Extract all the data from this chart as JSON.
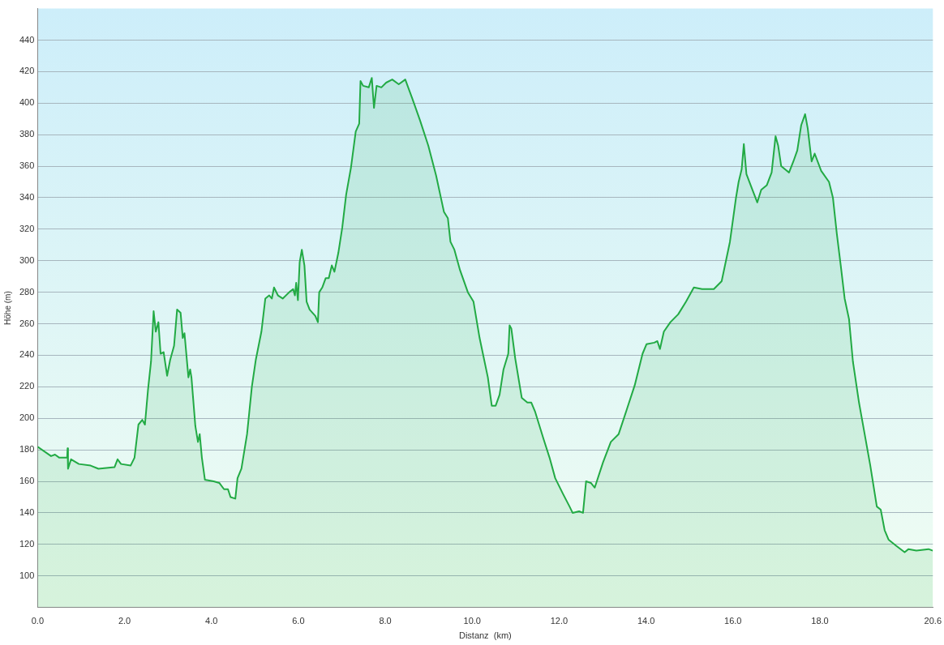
{
  "chart_data": {
    "type": "area",
    "xlabel": "Distanz  (km)",
    "ylabel": "Höhe (m)",
    "xlim": [
      0,
      20.6
    ],
    "ylim": [
      80,
      460
    ],
    "xticks": [
      {
        "value": 0,
        "label": "0.0"
      },
      {
        "value": 2,
        "label": "2.0"
      },
      {
        "value": 4,
        "label": "4.0"
      },
      {
        "value": 6,
        "label": "6.0"
      },
      {
        "value": 8,
        "label": "8.0"
      },
      {
        "value": 10,
        "label": "10.0"
      },
      {
        "value": 12,
        "label": "12.0"
      },
      {
        "value": 14,
        "label": "14.0"
      },
      {
        "value": 16,
        "label": "16.0"
      },
      {
        "value": 18,
        "label": "18.0"
      },
      {
        "value": 20.6,
        "label": "20.6"
      }
    ],
    "yticks": [
      100,
      120,
      140,
      160,
      180,
      200,
      220,
      240,
      260,
      280,
      300,
      320,
      340,
      360,
      380,
      400,
      420,
      440
    ],
    "grid": "y",
    "legend": false,
    "marker": "none",
    "line_style": "solid",
    "series": [
      {
        "color": "#22aa44",
        "x": [
          0,
          0.31,
          0.4,
          0.5,
          0.68,
          0.69,
          0.7,
          0.77,
          0.95,
          1.22,
          1.4,
          1.77,
          1.84,
          1.92,
          2.14,
          2.23,
          2.32,
          2.41,
          2.47,
          2.54,
          2.61,
          2.67,
          2.72,
          2.78,
          2.83,
          2.9,
          2.98,
          3.05,
          3.14,
          3.21,
          3.29,
          3.34,
          3.38,
          3.47,
          3.51,
          3.54,
          3.63,
          3.69,
          3.73,
          3.78,
          3.85,
          4.05,
          4.18,
          4.29,
          4.38,
          4.44,
          4.55,
          4.6,
          4.69,
          4.82,
          4.93,
          5.02,
          5.15,
          5.24,
          5.33,
          5.39,
          5.44,
          5.53,
          5.64,
          5.79,
          5.88,
          5.92,
          5.95,
          5.99,
          6.03,
          6.08,
          6.14,
          6.19,
          6.26,
          6.39,
          6.45,
          6.48,
          6.55,
          6.63,
          6.7,
          6.77,
          6.83,
          6.92,
          7.01,
          7.1,
          7.21,
          7.32,
          7.4,
          7.43,
          7.49,
          7.62,
          7.69,
          7.74,
          7.8,
          7.91,
          8.02,
          8.16,
          8.31,
          8.46,
          8.62,
          8.8,
          8.99,
          9.17,
          9.35,
          9.44,
          9.5,
          9.59,
          9.72,
          9.9,
          10.03,
          10.17,
          10.36,
          10.45,
          10.54,
          10.63,
          10.72,
          10.83,
          10.86,
          10.9,
          10.99,
          11.14,
          11.27,
          11.36,
          11.45,
          11.64,
          11.78,
          11.91,
          12.09,
          12.24,
          12.31,
          12.46,
          12.55,
          12.62,
          12.73,
          12.82,
          13.01,
          13.19,
          13.37,
          13.55,
          13.74,
          13.92,
          14.01,
          14.19,
          14.26,
          14.32,
          14.41,
          14.56,
          14.74,
          14.92,
          15.1,
          15.29,
          15.56,
          15.74,
          15.93,
          16.07,
          16.13,
          16.2,
          16.25,
          16.31,
          16.42,
          16.56,
          16.65,
          16.78,
          16.89,
          16.98,
          17.04,
          17.11,
          17.2,
          17.29,
          17.39,
          17.48,
          17.57,
          17.66,
          17.72,
          17.81,
          17.88,
          18.03,
          18.21,
          18.3,
          18.39,
          18.48,
          18.57,
          18.67,
          18.76,
          18.9,
          19.03,
          19.16,
          19.31,
          19.4,
          19.49,
          19.58,
          19.76,
          19.95,
          20.04,
          20.22,
          20.5,
          20.6
        ],
        "values": [
          182,
          176,
          177,
          175,
          175,
          181,
          168,
          174,
          171,
          170,
          168,
          169,
          174,
          171,
          170,
          175,
          196,
          199,
          196,
          218,
          236,
          268,
          255,
          261,
          241,
          242,
          227,
          237,
          246,
          269,
          267,
          251,
          254,
          226,
          231,
          226,
          195,
          185,
          190,
          175,
          161,
          160,
          159,
          155,
          155,
          150,
          149,
          162,
          168,
          190,
          220,
          237,
          255,
          276,
          278,
          276,
          283,
          278,
          276,
          280,
          282,
          278,
          286,
          275,
          299,
          307,
          297,
          274,
          269,
          265,
          261,
          280,
          283,
          289,
          289,
          297,
          293,
          305,
          321,
          342,
          359,
          382,
          387,
          414,
          411,
          410,
          416,
          397,
          411,
          410,
          413,
          415,
          412,
          415,
          403,
          389,
          373,
          354,
          331,
          327,
          312,
          307,
          294,
          280,
          274,
          251,
          226,
          208,
          208,
          215,
          231,
          241,
          259,
          257,
          238,
          213,
          210,
          210,
          204,
          187,
          175,
          162,
          152,
          144,
          140,
          141,
          140,
          160,
          159,
          156,
          172,
          185,
          190,
          205,
          221,
          241,
          247,
          248,
          249,
          244,
          255,
          261,
          266,
          274,
          283,
          282,
          282,
          287,
          312,
          340,
          350,
          358,
          374,
          355,
          347,
          337,
          345,
          348,
          356,
          379,
          373,
          360,
          358,
          356,
          363,
          370,
          386,
          393,
          384,
          363,
          368,
          357,
          350,
          340,
          317,
          297,
          276,
          263,
          236,
          210,
          190,
          170,
          144,
          142,
          129,
          123,
          119,
          115,
          117,
          116,
          117,
          116
        ]
      }
    ]
  }
}
